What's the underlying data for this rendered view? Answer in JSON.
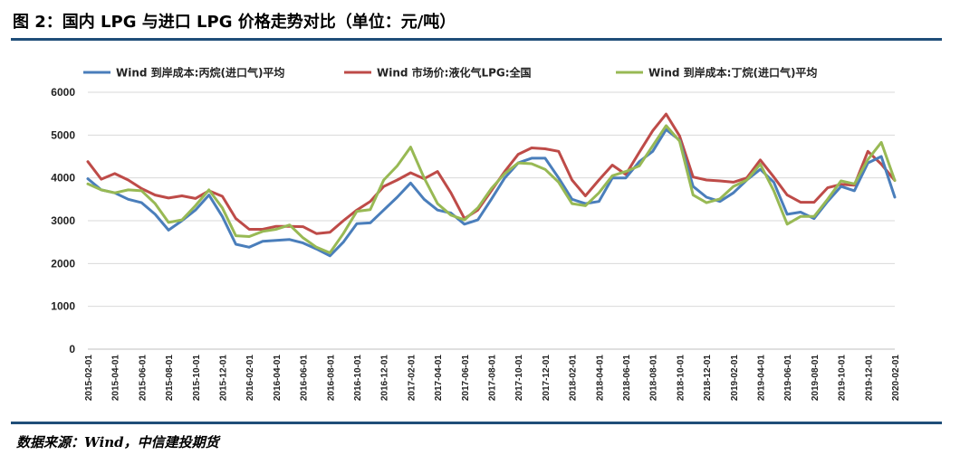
{
  "header": {
    "title": "图 2：国内 LPG 与进口 LPG 价格走势对比（单位：元/吨）"
  },
  "footer": {
    "source": "数据来源：Wind，中信建投期货"
  },
  "colors": {
    "rule": "#1f4e79",
    "series_blue": "#4a7ebb",
    "series_red": "#be4b48",
    "series_green": "#98b954"
  },
  "chart_data": {
    "type": "line",
    "title": "",
    "xlabel": "",
    "ylabel": "",
    "ylim": [
      0,
      6000
    ],
    "yticks": [
      0,
      1000,
      2000,
      3000,
      4000,
      5000,
      6000
    ],
    "grid": true,
    "legend_position": "top",
    "x": [
      "2015-02-01",
      "2015-03-01",
      "2015-04-01",
      "2015-05-01",
      "2015-06-01",
      "2015-07-01",
      "2015-08-01",
      "2015-09-01",
      "2015-10-01",
      "2015-11-01",
      "2015-12-01",
      "2016-01-01",
      "2016-02-01",
      "2016-03-01",
      "2016-04-01",
      "2016-05-01",
      "2016-06-01",
      "2016-07-01",
      "2016-08-01",
      "2016-09-01",
      "2016-10-01",
      "2016-11-01",
      "2016-12-01",
      "2017-01-01",
      "2017-02-01",
      "2017-03-01",
      "2017-04-01",
      "2017-05-01",
      "2017-06-01",
      "2017-07-01",
      "2017-08-01",
      "2017-09-01",
      "2017-10-01",
      "2017-11-01",
      "2017-12-01",
      "2018-01-01",
      "2018-02-01",
      "2018-03-01",
      "2018-04-01",
      "2018-05-01",
      "2018-06-01",
      "2018-07-01",
      "2018-08-01",
      "2018-09-01",
      "2018-10-01",
      "2018-11-01",
      "2018-12-01",
      "2019-01-01",
      "2019-02-01",
      "2019-03-01",
      "2019-04-01",
      "2019-05-01",
      "2019-06-01",
      "2019-07-01",
      "2019-08-01",
      "2019-09-01",
      "2019-10-01",
      "2019-11-01",
      "2019-12-01",
      "2020-01-01",
      "2020-02-01"
    ],
    "tick_labels": [
      "2015-02-01",
      "2015-04-01",
      "2015-06-01",
      "2015-08-01",
      "2015-10-01",
      "2015-12-01",
      "2016-02-01",
      "2016-04-01",
      "2016-06-01",
      "2016-08-01",
      "2016-10-01",
      "2016-12-01",
      "2017-02-01",
      "2017-04-01",
      "2017-06-01",
      "2017-08-01",
      "2017-10-01",
      "2017-12-01",
      "2018-02-01",
      "2018-04-01",
      "2018-06-01",
      "2018-08-01",
      "2018-10-01",
      "2018-12-01",
      "2019-02-01",
      "2019-04-01",
      "2019-06-01",
      "2019-08-01",
      "2019-10-01",
      "2019-12-01",
      "2020-02-01"
    ],
    "series": [
      {
        "name": "Wind 到岸成本:丙烷(进口气)平均",
        "color": "#4a7ebb",
        "values": [
          3980,
          3720,
          3650,
          3500,
          3420,
          3150,
          2780,
          3000,
          3250,
          3600,
          3100,
          2450,
          2380,
          2520,
          2540,
          2560,
          2480,
          2340,
          2180,
          2500,
          2930,
          2950,
          3250,
          3550,
          3880,
          3500,
          3250,
          3180,
          2920,
          3020,
          3500,
          4000,
          4350,
          4460,
          4460,
          4000,
          3500,
          3400,
          3450,
          4000,
          4000,
          4380,
          4620,
          5130,
          4880,
          3800,
          3550,
          3450,
          3650,
          3950,
          4200,
          3900,
          3150,
          3200,
          3050,
          3450,
          3800,
          3700,
          4350,
          4500,
          3550
        ]
      },
      {
        "name": "Wind 市场价:液化气LPG:全国",
        "color": "#be4b48",
        "values": [
          4380,
          3970,
          4100,
          3950,
          3750,
          3600,
          3530,
          3580,
          3520,
          3700,
          3570,
          3050,
          2800,
          2800,
          2870,
          2870,
          2860,
          2700,
          2730,
          3000,
          3250,
          3450,
          3800,
          3950,
          4120,
          3980,
          4150,
          3650,
          3050,
          3250,
          3700,
          4150,
          4550,
          4700,
          4680,
          4620,
          3950,
          3580,
          3950,
          4300,
          4080,
          4600,
          5100,
          5490,
          4980,
          4020,
          3950,
          3930,
          3900,
          4000,
          4420,
          4020,
          3600,
          3430,
          3430,
          3770,
          3850,
          3830,
          4620,
          4320,
          3940
        ]
      },
      {
        "name": "Wind 到岸成本:丁烷(进口气)平均",
        "color": "#98b954",
        "values": [
          3860,
          3720,
          3650,
          3720,
          3700,
          3400,
          2960,
          3020,
          3350,
          3720,
          3300,
          2650,
          2630,
          2750,
          2800,
          2900,
          2600,
          2380,
          2250,
          2700,
          3220,
          3260,
          3950,
          4280,
          4720,
          4000,
          3400,
          3130,
          3020,
          3300,
          3750,
          4100,
          4350,
          4330,
          4200,
          3900,
          3400,
          3350,
          3650,
          4050,
          4150,
          4280,
          4750,
          5220,
          4860,
          3600,
          3420,
          3510,
          3800,
          3950,
          4320,
          3700,
          2920,
          3100,
          3100,
          3500,
          3930,
          3860,
          4430,
          4830,
          3940
        ]
      }
    ]
  }
}
